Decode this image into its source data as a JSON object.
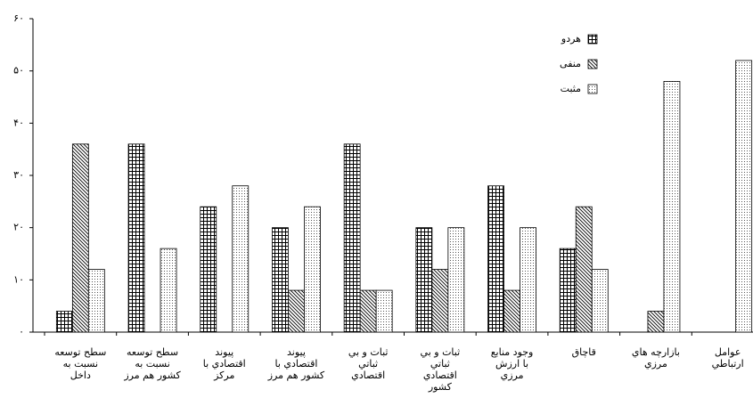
{
  "chart_data": {
    "type": "bar",
    "categories": [
      "سطح توسعه\nنسبت به\nداخل",
      "سطح توسعه\nنسبت به\nكشور هم مرز",
      "پيوند\nاقتصادي با\nمركز",
      "پيوند\nاقتصادي با\nكشور هم مرز",
      "ثبات و بي\nثباتي\nاقتصادي",
      "ثبات و بي\nثباتي\nاقتصادي\nكشور",
      "وجود منابع\nبا ارزش\nمرزي",
      "قاچاق",
      "بازارچه هاي\nمرزي",
      "عوامل\nارتباطي"
    ],
    "series": [
      {
        "name": "هردو",
        "color": "#000000",
        "values": [
          4,
          36,
          24,
          20,
          36,
          20,
          28,
          16,
          0,
          0
        ]
      },
      {
        "name": "منفی",
        "color": "#000000",
        "values": [
          36,
          0,
          0,
          8,
          8,
          12,
          8,
          24,
          4,
          0
        ]
      },
      {
        "name": "مثبت",
        "color": "#000000",
        "values": [
          12,
          16,
          28,
          24,
          8,
          20,
          20,
          12,
          48,
          52
        ]
      }
    ],
    "ylim": [
      0,
      60
    ],
    "yticks": [
      {
        "value": 0,
        "label": "۰"
      },
      {
        "value": 10,
        "label": "۱۰"
      },
      {
        "value": 20,
        "label": "۲۰"
      },
      {
        "value": 30,
        "label": "۳۰"
      },
      {
        "value": 40,
        "label": "۴۰"
      },
      {
        "value": 50,
        "label": "۵۰"
      },
      {
        "value": 60,
        "label": "۶۰"
      }
    ]
  }
}
